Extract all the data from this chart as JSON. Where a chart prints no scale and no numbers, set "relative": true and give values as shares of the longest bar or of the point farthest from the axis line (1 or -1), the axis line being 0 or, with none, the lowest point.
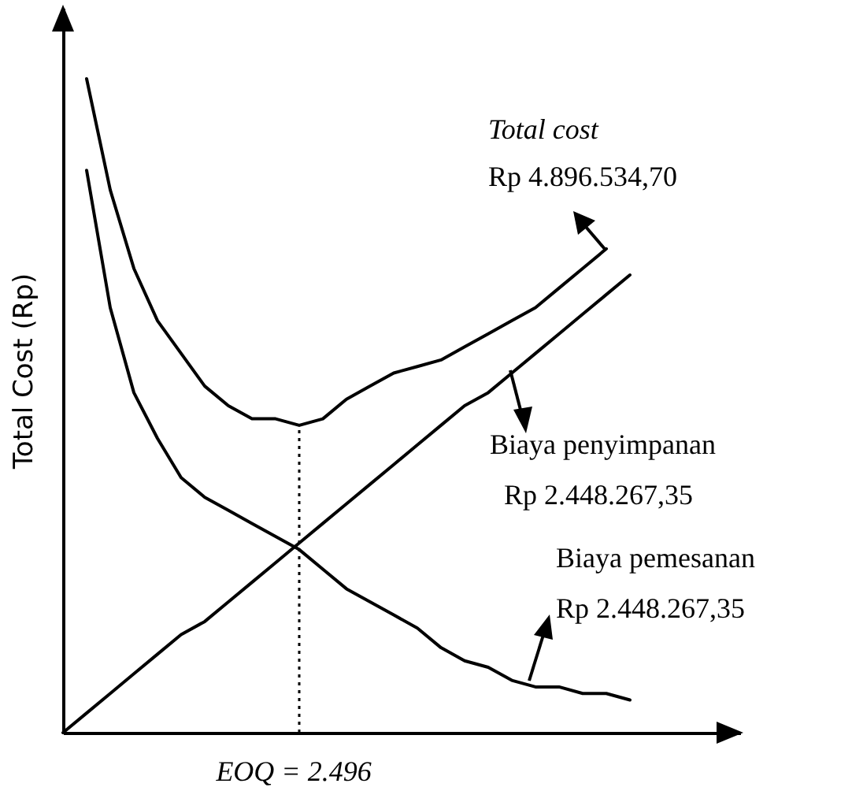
{
  "chart_data": {
    "type": "line",
    "ylabel": "Total Cost (Rp)",
    "relative": true,
    "grid": false,
    "marker": "none",
    "line_style": "solid",
    "categories": [
      null,
      null,
      null,
      null,
      null,
      null,
      null,
      null,
      null,
      null,
      null,
      null,
      null,
      null,
      null,
      null,
      null,
      null,
      null,
      null,
      null,
      null,
      null,
      null,
      null
    ],
    "series": [
      {
        "color": "#000000",
        "values": [
          null,
          1.0,
          0.83,
          0.71,
          0.63,
          0.58,
          0.53,
          0.5,
          0.48,
          0.48,
          0.47,
          0.48,
          0.51,
          0.53,
          0.55,
          0.56,
          0.57,
          0.59,
          0.61,
          0.63,
          0.65,
          0.68,
          0.71,
          0.74,
          null
        ]
      },
      {
        "color": "#000000",
        "values": [
          0,
          0.03,
          0.06,
          0.09,
          0.12,
          0.15,
          0.17,
          0.2,
          0.23,
          0.26,
          0.29,
          0.32,
          0.35,
          0.38,
          0.41,
          0.44,
          0.47,
          0.5,
          0.52,
          0.55,
          0.58,
          0.61,
          0.64,
          0.67,
          0.7
        ]
      },
      {
        "color": "#000000",
        "values": [
          null,
          0.86,
          0.65,
          0.52,
          0.45,
          0.39,
          0.36,
          0.34,
          0.32,
          0.3,
          0.28,
          0.25,
          0.22,
          0.2,
          0.18,
          0.16,
          0.13,
          0.11,
          0.1,
          0.08,
          0.07,
          0.07,
          0.06,
          0.06,
          0.05
        ]
      }
    ],
    "xlabel": "EOQ = 2.496",
    "annotations": [
      "Total cost",
      "Rp 4.896.534,70",
      "Biaya penyimpanan",
      "Rp 2.448.267,35",
      "Biaya pemesanan",
      "Rp 2.448.267,35"
    ]
  }
}
